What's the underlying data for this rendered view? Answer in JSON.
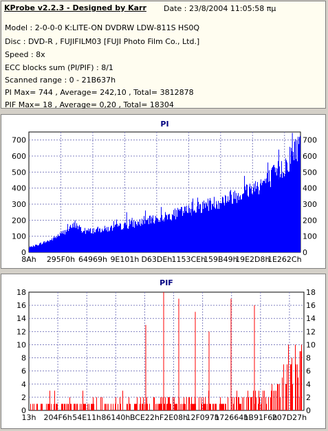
{
  "header": {
    "title": "KProbe v2.2.3 - Designed by Karr",
    "date": "Date : 23/8/2004 11:05:58 πμ",
    "lines": [
      "Model : 2-0-0-0 K:LITE-ON DVDRW LDW-811S   HS0Q",
      "Disc : DVD-R , FUJIFILM03 [FUJI Photo Film Co., Ltd.]",
      "Speed : 8x",
      "ECC blocks sum (PI/PIF) : 8/1",
      "Scanned range : 0 - 21B637h",
      "PI Max= 744 , Average= 242,10 , Total= 3812878",
      "PIF Max= 18 , Average= 0,20 , Total= 18304"
    ]
  },
  "colors": {
    "pi": "#0000ff",
    "pif": "#ff0000",
    "title": "#000080",
    "plot_bg": "#ffffff"
  },
  "chart_data": [
    {
      "type": "area",
      "title": "PI",
      "ylim": [
        0,
        750
      ],
      "yticks": [
        0,
        100,
        200,
        300,
        400,
        500,
        600,
        700
      ],
      "xticklabels": [
        "8Ah",
        "295F0h",
        "64969h",
        "9E101h",
        "D63DEh",
        "1153CEh",
        "159B49h",
        "19E2D8h",
        "1E262Ch"
      ],
      "x_range": [
        0,
        2209335
      ],
      "envelope": [
        [
          0,
          30
        ],
        [
          0.08,
          80
        ],
        [
          0.15,
          155
        ],
        [
          0.17,
          180
        ],
        [
          0.2,
          135
        ],
        [
          0.3,
          155
        ],
        [
          0.4,
          190
        ],
        [
          0.5,
          230
        ],
        [
          0.6,
          280
        ],
        [
          0.7,
          330
        ],
        [
          0.8,
          400
        ],
        [
          0.88,
          470
        ],
        [
          0.94,
          560
        ],
        [
          1.0,
          720
        ]
      ],
      "spikes": [
        [
          0.17,
          200
        ],
        [
          0.36,
          250
        ],
        [
          0.38,
          215
        ],
        [
          0.6,
          315
        ],
        [
          0.74,
          380
        ],
        [
          0.88,
          560
        ],
        [
          0.92,
          640
        ],
        [
          0.97,
          744
        ]
      ]
    },
    {
      "type": "bar",
      "title": "PIF",
      "ylim": [
        0,
        18
      ],
      "yticks": [
        0,
        2,
        4,
        6,
        8,
        10,
        12,
        14,
        16,
        18
      ],
      "xticklabels": [
        "13h",
        "204F6h",
        "54E11h",
        "86140h",
        "BCE22h",
        "F2E08h",
        "12F097h",
        "172664h",
        "1B91F6h",
        "207D27h"
      ],
      "x_range": [
        0,
        2209335
      ],
      "baseline": [
        [
          0,
          0.8
        ],
        [
          0.7,
          1.2
        ],
        [
          0.85,
          1.8
        ],
        [
          0.92,
          3
        ],
        [
          1.0,
          8
        ]
      ],
      "spikes": [
        [
          0.425,
          13
        ],
        [
          0.49,
          18
        ],
        [
          0.545,
          17
        ],
        [
          0.605,
          15
        ],
        [
          0.655,
          12
        ],
        [
          0.735,
          17
        ],
        [
          0.82,
          16
        ],
        [
          0.985,
          9
        ]
      ]
    }
  ]
}
